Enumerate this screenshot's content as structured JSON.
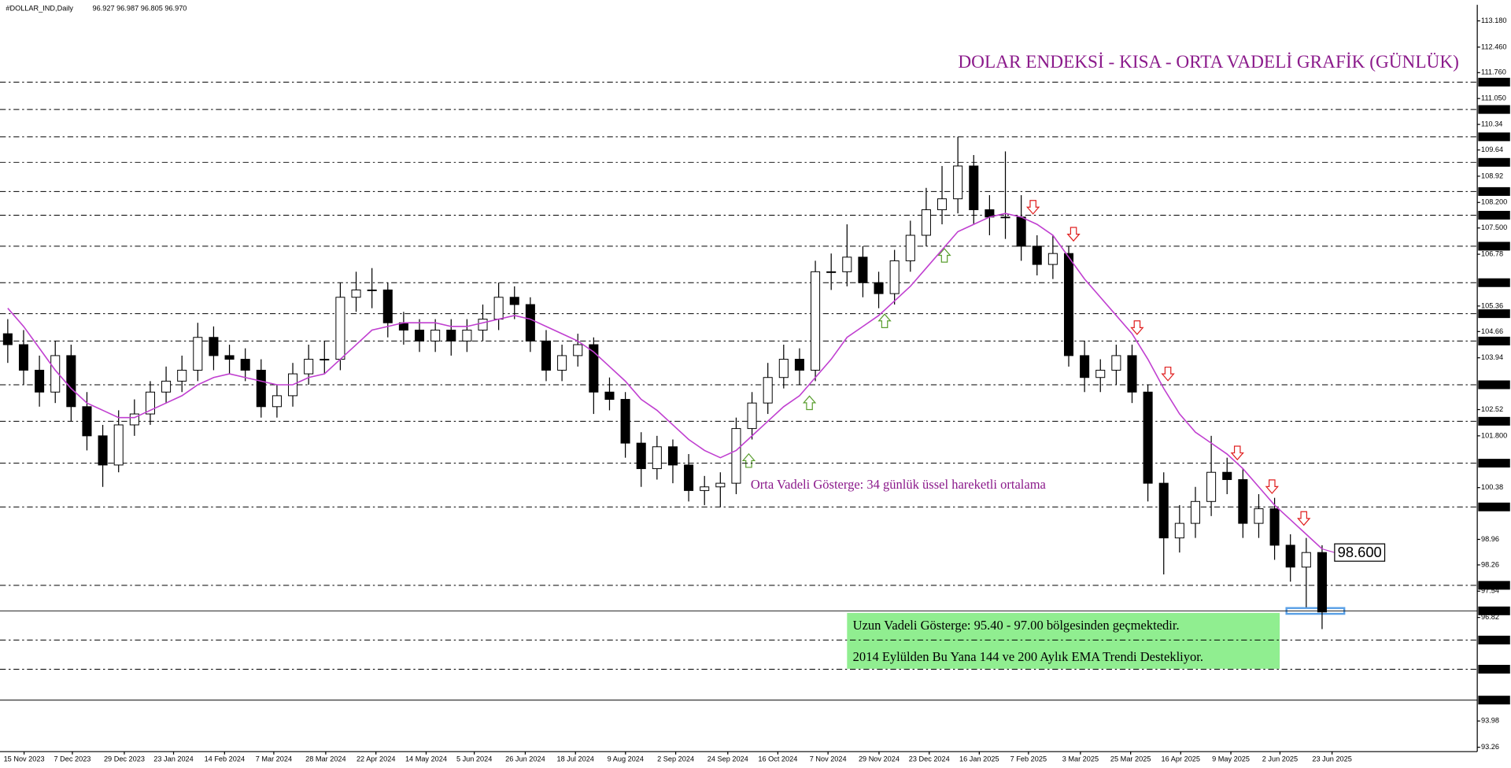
{
  "chart_data": {
    "type": "candlestick",
    "header": "#DOLLAR_IND,Daily",
    "header_prices": "96.927 96.987 96.805 96.970",
    "title": "DOLAR ENDEKSİ - KISA - ORTA VADELİ GRAFİK (GÜNLÜK)",
    "ema_note": "Orta Vadeli Gösterge: 34 günlük üssel hareketli ortalama",
    "long_term_note": [
      "Uzun Vadeli Gösterge: 95.40 - 97.00 bölgesinden geçmektedir.",
      "2014 Eylülden Bu Yana 144 ve 200 Aylık EMA Trendi Destekliyor."
    ],
    "up_color": "#ffffff",
    "down_color": "#000000",
    "ema_color": "#c03fd0",
    "xlim": [
      -0.49,
      92.8
    ],
    "ylim": [
      93.14,
      113.62
    ],
    "xticks": [
      {
        "value": 1.03,
        "label": "15 Nov 2023"
      },
      {
        "value": 4.08,
        "label": "7 Dec 2023"
      },
      {
        "value": 7.36,
        "label": "29 Dec 2023"
      },
      {
        "value": 10.47,
        "label": "23 Jan 2024"
      },
      {
        "value": 13.69,
        "label": "14 Feb 2024"
      },
      {
        "value": 16.8,
        "label": "7 Mar 2024"
      },
      {
        "value": 20.08,
        "label": "28 Mar 2024"
      },
      {
        "value": 23.25,
        "label": "22 Apr 2024"
      },
      {
        "value": 26.42,
        "label": "14 May 2024"
      },
      {
        "value": 29.46,
        "label": "5 Jun 2024"
      },
      {
        "value": 32.68,
        "label": "26 Jun 2024"
      },
      {
        "value": 35.85,
        "label": "18 Jul 2024"
      },
      {
        "value": 39.01,
        "label": "9 Aug 2024"
      },
      {
        "value": 42.18,
        "label": "2 Sep 2024"
      },
      {
        "value": 45.47,
        "label": "24 Sep 2024"
      },
      {
        "value": 48.63,
        "label": "16 Oct 2024"
      },
      {
        "value": 51.8,
        "label": "7 Nov 2024"
      },
      {
        "value": 55.02,
        "label": "29 Nov 2024"
      },
      {
        "value": 58.19,
        "label": "23 Dec 2024"
      },
      {
        "value": 61.35,
        "label": "16 Jan 2025"
      },
      {
        "value": 64.46,
        "label": "7 Feb 2025"
      },
      {
        "value": 67.74,
        "label": "3 Mar 2025"
      },
      {
        "value": 70.91,
        "label": "25 Mar 2025"
      },
      {
        "value": 74.07,
        "label": "16 Apr 2025"
      },
      {
        "value": 77.24,
        "label": "9 May 2025"
      },
      {
        "value": 80.34,
        "label": "2 Jun 2025"
      },
      {
        "value": 83.63,
        "label": "23 Jun 2025"
      }
    ],
    "yticks": [
      {
        "value": 113.18,
        "label": "113.180"
      },
      {
        "value": 112.46,
        "label": "112.460"
      },
      {
        "value": 111.76,
        "label": "111.760"
      },
      {
        "value": 111.05,
        "label": "111.050"
      },
      110.34,
      109.64,
      108.92,
      {
        "value": 108.2,
        "label": "108.200"
      },
      {
        "value": 107.5,
        "label": "107.500"
      },
      106.78,
      105.36,
      104.66,
      103.94,
      102.52,
      {
        "value": 101.8,
        "label": "101.800"
      },
      100.38,
      98.96,
      98.26,
      97.54,
      96.82,
      93.98,
      93.26
    ],
    "levels": [
      {
        "value": 111.5,
        "label": "111.500"
      },
      {
        "value": 110.75,
        "label": "110.750"
      },
      {
        "value": 110,
        "label": "110.000"
      },
      {
        "value": 109.3,
        "label": "109.300"
      },
      {
        "value": 108.5,
        "label": "108.500"
      },
      {
        "value": 107.85,
        "label": "107.850"
      },
      {
        "value": 107,
        "label": "107.000"
      },
      {
        "value": 106,
        "label": "106.000"
      },
      {
        "value": 105.15,
        "label": "105.150"
      },
      {
        "value": 104.4,
        "label": "104.400"
      },
      {
        "value": 103.2,
        "label": "103.200"
      },
      {
        "value": 102.2,
        "label": "102.200"
      },
      {
        "value": 101.05,
        "label": "101.050"
      },
      {
        "value": 99.85,
        "label": "99.850"
      },
      {
        "value": 97.7,
        "label": "97.700"
      },
      {
        "value": 97,
        "label": "97.000",
        "style": "solid"
      },
      {
        "value": 96.2,
        "label": "96.200"
      },
      {
        "value": 95.4,
        "label": "95.400"
      },
      {
        "value": 94.553,
        "label": "94.553",
        "style": "solid"
      }
    ],
    "open": [
      104.6,
      104.3,
      103.6,
      103.0,
      104.0,
      102.6,
      101.8,
      101.0,
      102.1,
      102.4,
      103.0,
      103.3,
      103.6,
      104.5,
      104.0,
      103.9,
      103.6,
      102.6,
      102.9,
      103.5,
      103.9,
      103.9,
      105.6,
      105.8,
      105.8,
      104.9,
      104.7,
      104.4,
      104.7,
      104.4,
      104.7,
      105.0,
      105.6,
      105.4,
      104.4,
      103.6,
      104.0,
      104.3,
      103.0,
      102.8,
      101.6,
      100.9,
      101.5,
      101.0,
      100.3,
      100.4,
      100.5,
      102.0,
      102.7,
      103.4,
      103.9,
      103.6,
      106.3,
      106.3,
      106.7,
      106.0,
      105.7,
      106.6,
      107.3,
      108.0,
      108.3,
      109.2,
      108.0,
      107.8,
      107.8,
      107.0,
      106.5,
      106.8,
      104.0,
      103.4,
      103.6,
      104.0,
      103.0,
      100.5,
      99.0,
      99.4,
      100.0,
      100.8,
      100.6,
      99.4,
      99.8,
      98.8,
      98.2,
      98.6
    ],
    "high": [
      105.0,
      104.7,
      104.0,
      104.4,
      104.3,
      103.0,
      102.1,
      102.5,
      102.8,
      103.3,
      103.7,
      104.0,
      104.9,
      104.8,
      104.3,
      104.2,
      103.9,
      103.2,
      103.8,
      104.3,
      104.4,
      106.0,
      106.3,
      106.4,
      106.0,
      105.2,
      105.0,
      105.0,
      105.0,
      105.0,
      105.4,
      106.0,
      105.9,
      105.6,
      104.7,
      104.3,
      104.6,
      104.5,
      103.4,
      103.0,
      101.9,
      101.8,
      101.7,
      101.3,
      100.7,
      100.8,
      102.3,
      103.0,
      103.8,
      104.3,
      104.2,
      106.6,
      106.8,
      107.6,
      107.0,
      106.3,
      106.9,
      107.7,
      108.6,
      109.2,
      110.0,
      109.5,
      108.4,
      109.6,
      108.4,
      107.3,
      107.3,
      107.0,
      104.4,
      103.9,
      104.3,
      104.3,
      103.2,
      100.8,
      99.9,
      100.4,
      101.8,
      101.2,
      100.9,
      100.2,
      100.1,
      99.1,
      99.0,
      98.8
    ],
    "low": [
      103.8,
      103.2,
      102.6,
      102.7,
      102.2,
      101.4,
      100.4,
      100.8,
      101.8,
      102.1,
      102.7,
      103.0,
      103.3,
      103.6,
      103.5,
      103.3,
      102.3,
      102.3,
      102.6,
      103.2,
      103.5,
      103.6,
      105.2,
      105.3,
      104.5,
      104.3,
      104.1,
      104.1,
      104.0,
      104.1,
      104.4,
      104.7,
      105.0,
      104.1,
      103.3,
      103.3,
      103.7,
      102.4,
      102.5,
      101.2,
      100.4,
      100.6,
      100.5,
      100.0,
      99.9,
      99.85,
      100.2,
      101.7,
      102.4,
      103.1,
      103.2,
      103.3,
      105.8,
      105.9,
      105.6,
      105.3,
      105.4,
      106.3,
      107.0,
      107.6,
      107.9,
      107.6,
      107.3,
      107.2,
      106.6,
      106.2,
      106.1,
      103.7,
      103.0,
      103.0,
      103.2,
      102.7,
      100.0,
      98.0,
      98.6,
      99.0,
      99.6,
      100.2,
      99.0,
      99.0,
      98.4,
      97.8,
      97.1,
      96.5
    ],
    "close": [
      104.3,
      103.6,
      103.0,
      104.0,
      102.6,
      101.8,
      101.0,
      102.1,
      102.4,
      103.0,
      103.3,
      103.6,
      104.5,
      104.0,
      103.9,
      103.6,
      102.6,
      102.9,
      103.5,
      103.9,
      103.9,
      105.6,
      105.8,
      105.8,
      104.9,
      104.7,
      104.4,
      104.7,
      104.4,
      104.7,
      105.0,
      105.6,
      105.4,
      104.4,
      103.6,
      104.0,
      104.3,
      103.0,
      102.8,
      101.6,
      100.9,
      101.5,
      101.0,
      100.3,
      100.4,
      100.5,
      102.0,
      102.7,
      103.4,
      103.9,
      103.6,
      106.3,
      106.3,
      106.7,
      106.0,
      105.7,
      106.6,
      107.3,
      108.0,
      108.3,
      109.2,
      108.0,
      107.8,
      107.8,
      107.0,
      106.5,
      106.8,
      104.0,
      103.4,
      103.6,
      104.0,
      103.0,
      100.5,
      99.0,
      99.4,
      100.0,
      100.8,
      100.6,
      99.4,
      99.8,
      98.8,
      98.2,
      98.6,
      96.97
    ],
    "ema": [
      105.3,
      104.8,
      104.2,
      103.6,
      103.1,
      102.7,
      102.5,
      102.3,
      102.3,
      102.5,
      102.7,
      102.9,
      103.2,
      103.4,
      103.5,
      103.4,
      103.3,
      103.2,
      103.2,
      103.4,
      103.5,
      103.9,
      104.3,
      104.7,
      104.8,
      104.9,
      104.9,
      104.9,
      104.8,
      104.8,
      104.9,
      105.0,
      105.1,
      105.0,
      104.8,
      104.6,
      104.4,
      104.1,
      103.7,
      103.3,
      102.8,
      102.5,
      102.1,
      101.7,
      101.4,
      101.2,
      101.4,
      101.8,
      102.2,
      102.6,
      102.9,
      103.4,
      103.9,
      104.5,
      104.8,
      105.1,
      105.5,
      105.9,
      106.4,
      106.9,
      107.4,
      107.6,
      107.8,
      107.9,
      107.8,
      107.6,
      107.3,
      106.7,
      106.1,
      105.6,
      105.1,
      104.6,
      103.9,
      103.1,
      102.4,
      101.9,
      101.6,
      101.3,
      100.9,
      100.4,
      99.9,
      99.5,
      99.1,
      98.7
    ],
    "ema_label": {
      "value": 98.6,
      "label": "98.600"
    }
  }
}
